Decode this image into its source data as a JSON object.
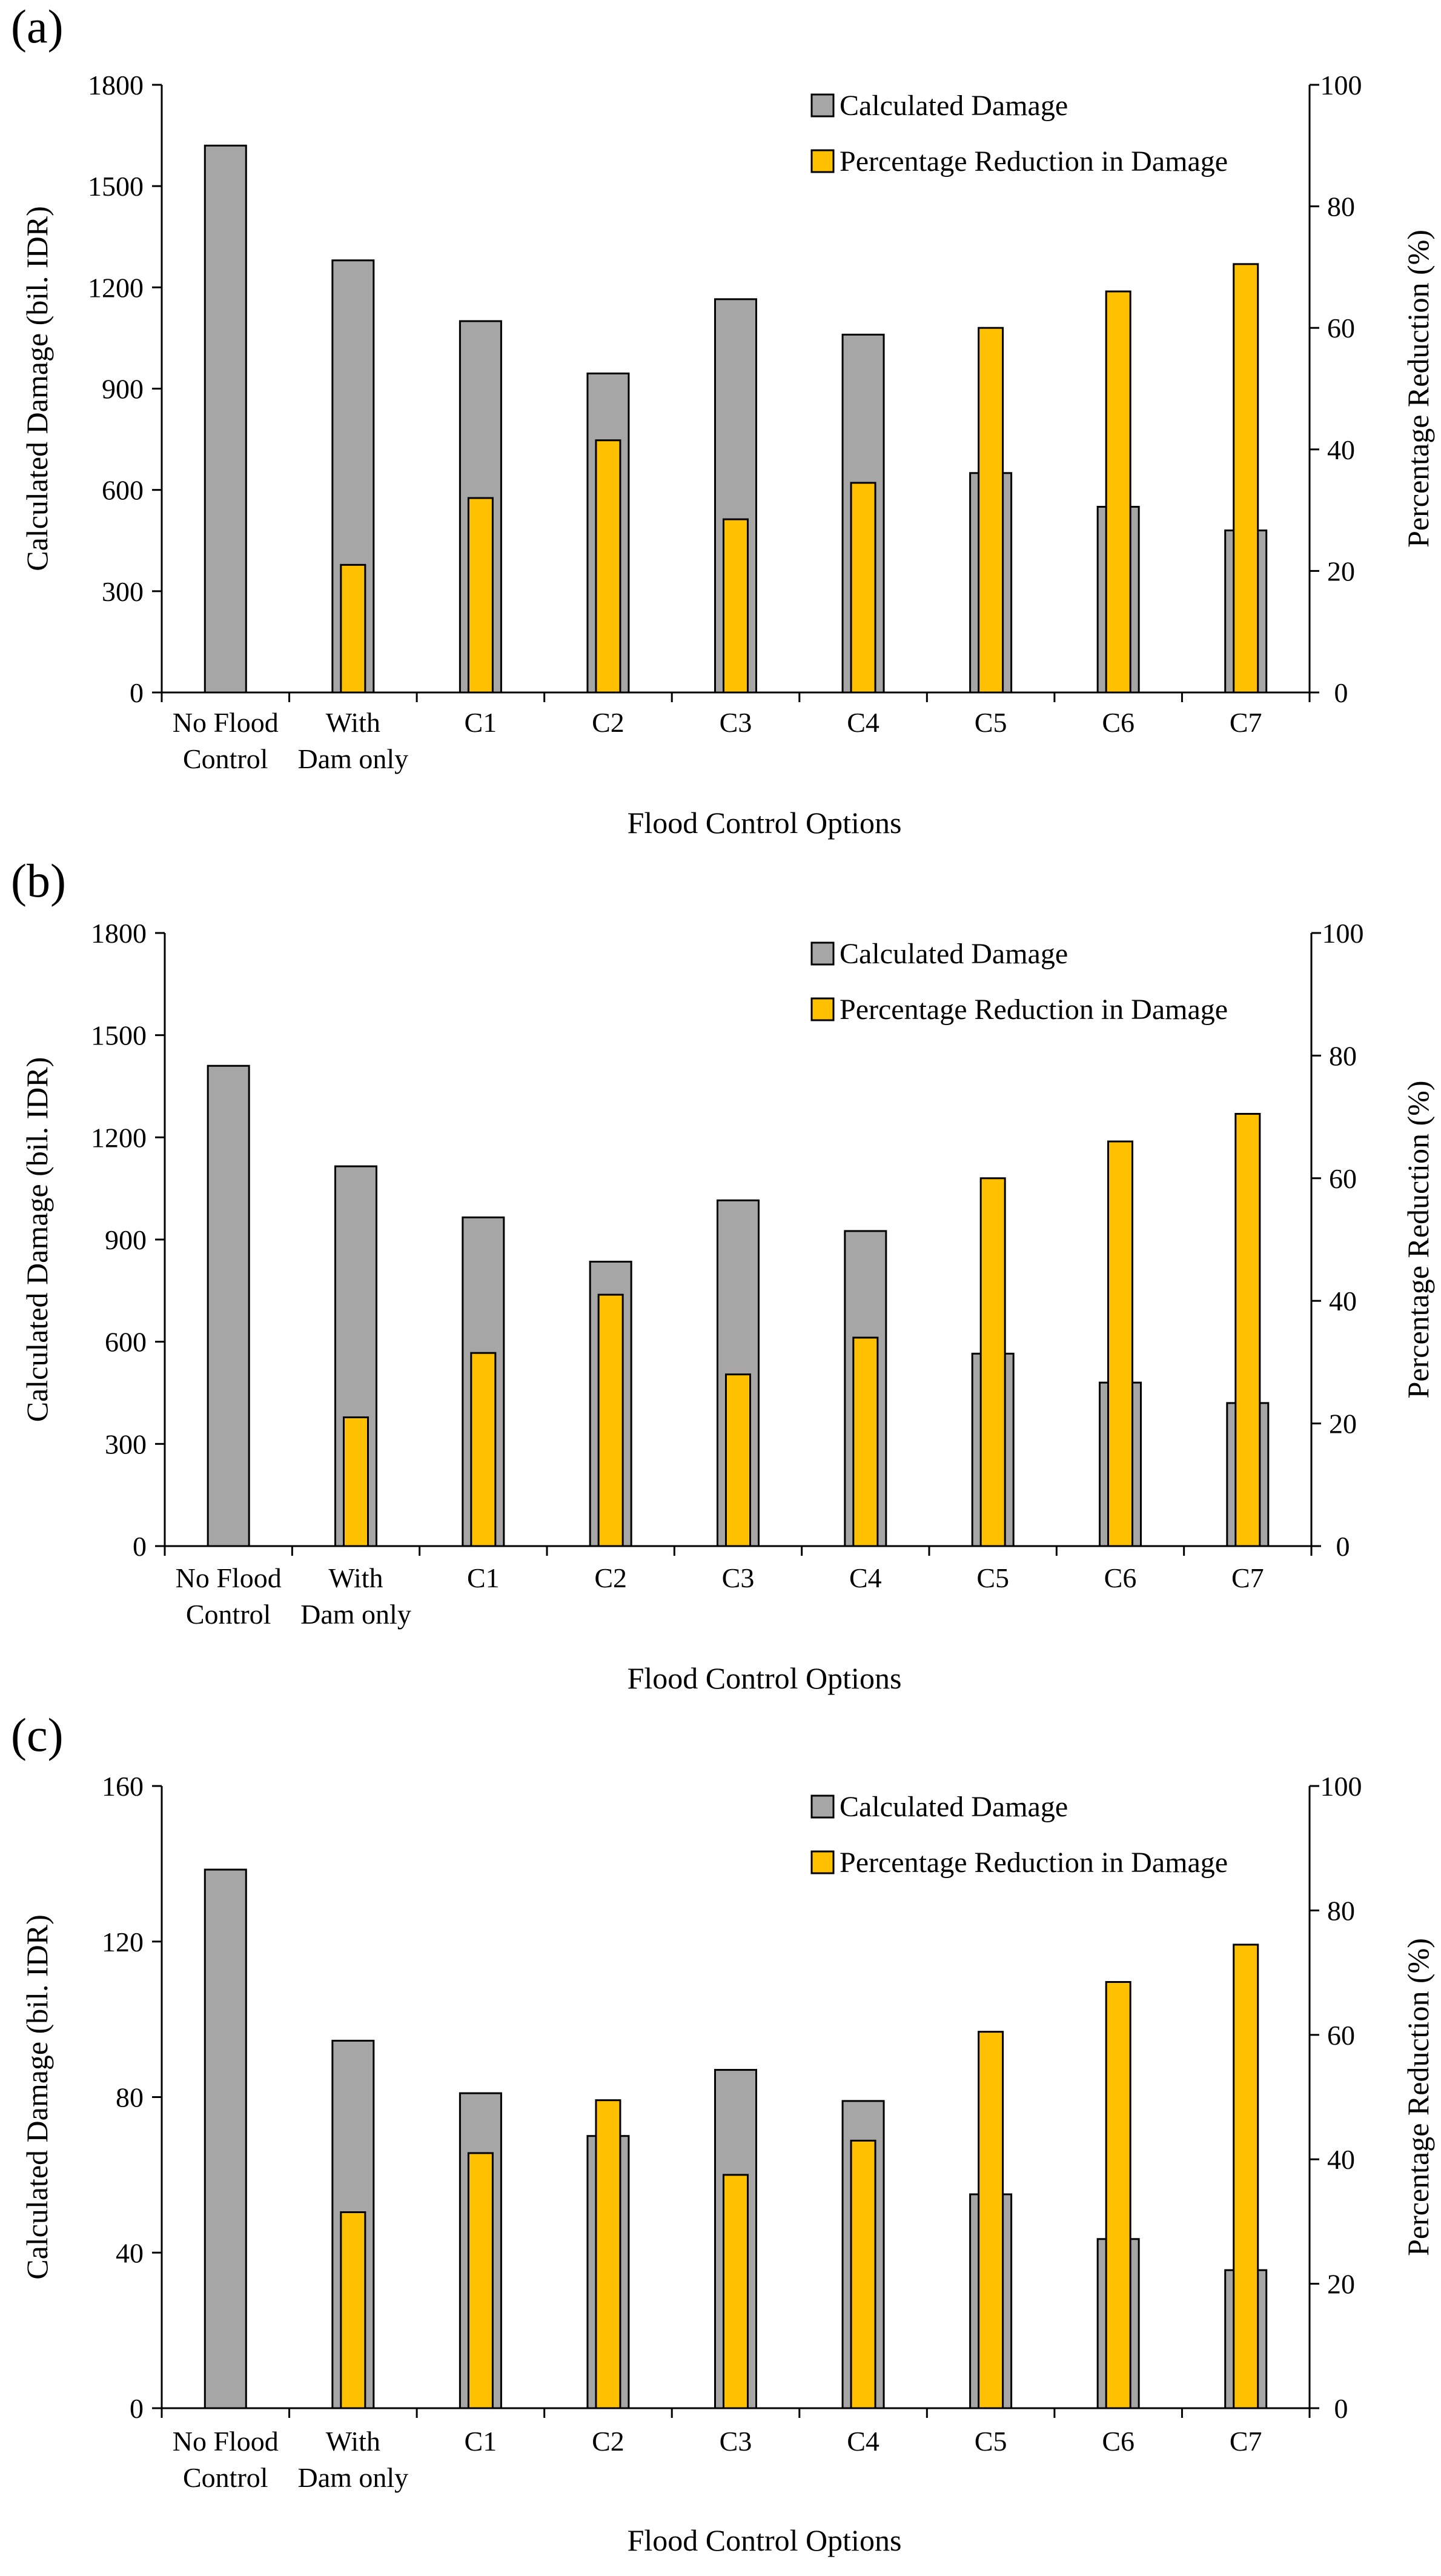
{
  "figure": {
    "panels": [
      "(a)",
      "(b)",
      "(c)"
    ]
  },
  "colors": {
    "damage": "#a6a6a6",
    "reduction": "#ffc000",
    "outline": "#000000"
  },
  "chart_data": [
    {
      "type": "bar",
      "panel_label": "(a)",
      "categories": [
        [
          "No Flood",
          "Control"
        ],
        [
          "With",
          "Dam only"
        ],
        [
          "C1"
        ],
        [
          "C2"
        ],
        [
          "C3"
        ],
        [
          "C4"
        ],
        [
          "C5"
        ],
        [
          "C6"
        ],
        [
          "C7"
        ]
      ],
      "xlabel": "Flood Control Options",
      "ylabel": "Calculated Damage (bil. IDR)",
      "y2label": "Percentage Reduction (%)",
      "ylim": [
        0,
        1800
      ],
      "yticks": [
        0,
        300,
        600,
        900,
        1200,
        1500,
        1800
      ],
      "y2lim": [
        0,
        100
      ],
      "y2ticks": [
        0,
        20,
        40,
        60,
        80,
        100
      ],
      "legend_position": "top-right",
      "series": [
        {
          "name": "Calculated Damage",
          "axis": "left",
          "values": [
            1620,
            1280,
            1100,
            945,
            1165,
            1060,
            650,
            550,
            480
          ]
        },
        {
          "name": "Percentage Reduction in Damage",
          "axis": "right",
          "values": [
            null,
            21,
            32,
            41.5,
            28.5,
            34.5,
            60,
            66,
            70.5
          ]
        }
      ]
    },
    {
      "type": "bar",
      "panel_label": "(b)",
      "categories": [
        [
          "No Flood",
          "Control"
        ],
        [
          "With",
          "Dam only"
        ],
        [
          "C1"
        ],
        [
          "C2"
        ],
        [
          "C3"
        ],
        [
          "C4"
        ],
        [
          "C5"
        ],
        [
          "C6"
        ],
        [
          "C7"
        ]
      ],
      "xlabel": "Flood Control Options",
      "ylabel": "Calculated Damage (bil. IDR)",
      "y2label": "Percentage Reduction (%)",
      "ylim": [
        0,
        1800
      ],
      "yticks": [
        0,
        300,
        600,
        900,
        1200,
        1500,
        1800
      ],
      "y2lim": [
        0,
        100
      ],
      "y2ticks": [
        0,
        20,
        40,
        60,
        80,
        100
      ],
      "legend_position": "top-right",
      "series": [
        {
          "name": "Calculated Damage",
          "axis": "left",
          "values": [
            1410,
            1115,
            965,
            835,
            1015,
            925,
            565,
            480,
            420
          ]
        },
        {
          "name": "Percentage Reduction in Damage",
          "axis": "right",
          "values": [
            null,
            21,
            31.5,
            41,
            28,
            34,
            60,
            66,
            70.5
          ]
        }
      ]
    },
    {
      "type": "bar",
      "panel_label": "(c)",
      "categories": [
        [
          "No Flood",
          "Control"
        ],
        [
          "With",
          "Dam only"
        ],
        [
          "C1"
        ],
        [
          "C2"
        ],
        [
          "C3"
        ],
        [
          "C4"
        ],
        [
          "C5"
        ],
        [
          "C6"
        ],
        [
          "C7"
        ]
      ],
      "xlabel": "Flood Control Options",
      "ylabel": "Calculated Damage (bil. IDR)",
      "y2label": "Percentage Reduction (%)",
      "ylim": [
        0,
        160
      ],
      "yticks": [
        0,
        40,
        80,
        120,
        160
      ],
      "y2lim": [
        0,
        100
      ],
      "y2ticks": [
        0,
        20,
        40,
        60,
        80,
        100
      ],
      "legend_position": "top-right",
      "series": [
        {
          "name": "Calculated Damage",
          "axis": "left",
          "values": [
            138.5,
            94.5,
            81,
            70,
            87,
            79,
            55,
            43.5,
            35.5
          ]
        },
        {
          "name": "Percentage Reduction in Damage",
          "axis": "right",
          "values": [
            null,
            31.5,
            41,
            49.5,
            37.5,
            43,
            60.5,
            68.5,
            74.5
          ]
        }
      ]
    }
  ]
}
